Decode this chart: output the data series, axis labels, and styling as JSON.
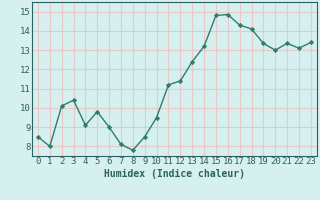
{
  "x": [
    0,
    1,
    2,
    3,
    4,
    5,
    6,
    7,
    8,
    9,
    10,
    11,
    12,
    13,
    14,
    15,
    16,
    17,
    18,
    19,
    20,
    21,
    22,
    23
  ],
  "y": [
    8.5,
    8.0,
    10.1,
    10.4,
    9.1,
    9.8,
    9.0,
    8.1,
    7.8,
    8.5,
    9.5,
    11.2,
    11.4,
    12.4,
    13.2,
    14.8,
    14.85,
    14.3,
    14.1,
    13.35,
    13.0,
    13.35,
    13.1,
    13.4
  ],
  "line_color": "#2e7d6e",
  "marker": "D",
  "markersize": 2.2,
  "linewidth": 1.0,
  "bg_color": "#d6f0f0",
  "grid_color": "#e8c8c8",
  "xlabel": "Humidex (Indice chaleur)",
  "ylim": [
    7.5,
    15.5
  ],
  "xlim": [
    -0.5,
    23.5
  ],
  "yticks": [
    8,
    9,
    10,
    11,
    12,
    13,
    14,
    15
  ],
  "xticks": [
    0,
    1,
    2,
    3,
    4,
    5,
    6,
    7,
    8,
    9,
    10,
    11,
    12,
    13,
    14,
    15,
    16,
    17,
    18,
    19,
    20,
    21,
    22,
    23
  ],
  "xlabel_fontsize": 7.0,
  "tick_fontsize": 6.5
}
